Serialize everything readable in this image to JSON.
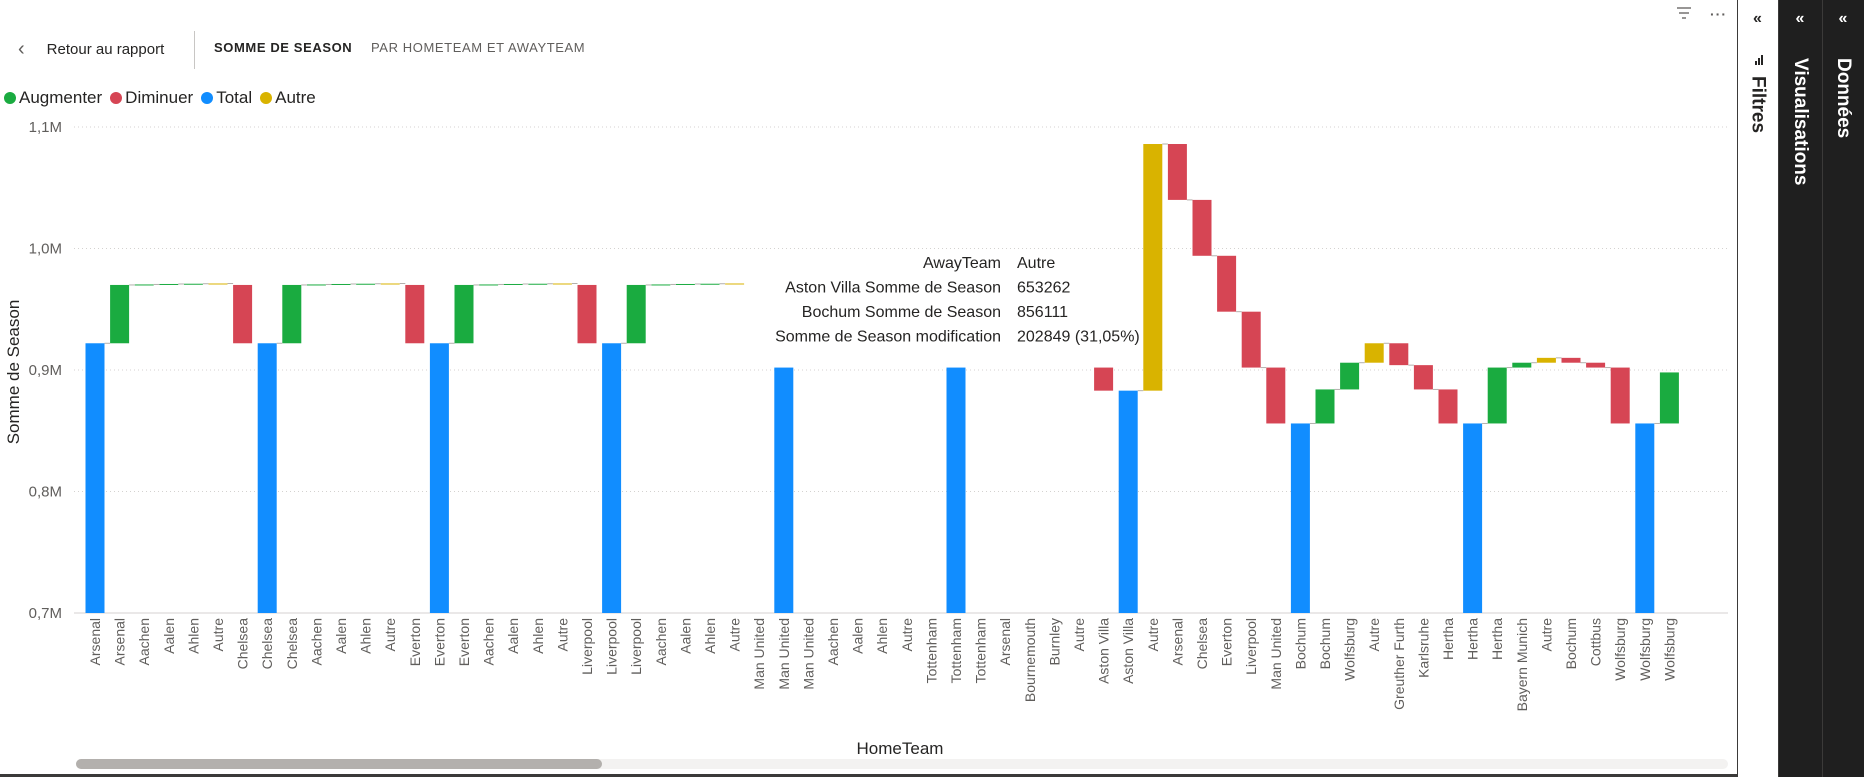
{
  "header": {
    "back_label": "Retour au rapport",
    "back_icon": "chevron-left-icon",
    "tabs": [
      {
        "label": "SOMME DE SEASON",
        "active": true
      },
      {
        "label": "PAR HOMETEAM ET AWAYTEAM",
        "active": false
      }
    ],
    "filter_icon": "filter-lines-icon",
    "more_icon": "ellipsis-icon"
  },
  "legend": [
    {
      "label": "Augmenter",
      "color": "#1AAB40"
    },
    {
      "label": "Diminuer",
      "color": "#D64554"
    },
    {
      "label": "Total",
      "color": "#118DFF"
    },
    {
      "label": "Autre",
      "color": "#D9B300"
    }
  ],
  "tooltip": [
    {
      "label": "AwayTeam",
      "value": "Autre"
    },
    {
      "label": "Aston Villa Somme de Season",
      "value": "653262"
    },
    {
      "label": "Bochum Somme de Season",
      "value": "856111"
    },
    {
      "label": "Somme de Season modification",
      "value": "202849 (31,05%)"
    }
  ],
  "chart_data": {
    "type": "waterfall",
    "xlabel": "HomeTeam",
    "ylabel": "Somme de Season",
    "ylim": [
      700000,
      1100000
    ],
    "yticks": [
      "0,7M",
      "0,8M",
      "0,9M",
      "1,0M",
      "1,1M"
    ],
    "grid": true,
    "legend_position": "top-left",
    "categories": [
      "Arsenal",
      "Arsenal",
      "Aachen",
      "Aalen",
      "Ahlen",
      "Autre",
      "Chelsea",
      "Chelsea",
      "Chelsea",
      "Aachen",
      "Aalen",
      "Ahlen",
      "Autre",
      "Everton",
      "Everton",
      "Everton",
      "Aachen",
      "Aalen",
      "Ahlen",
      "Autre",
      "Liverpool",
      "Liverpool",
      "Liverpool",
      "Aachen",
      "Aalen",
      "Ahlen",
      "Autre",
      "Man United",
      "Man United",
      "Man United",
      "Aachen",
      "Aalen",
      "Ahlen",
      "Autre",
      "Tottenham",
      "Tottenham",
      "Tottenham",
      "Arsenal",
      "Bournemouth",
      "Burnley",
      "Autre",
      "Aston Villa",
      "Aston Villa",
      "Autre",
      "Arsenal",
      "Chelsea",
      "Everton",
      "Liverpool",
      "Man United",
      "Bochum",
      "Bochum",
      "Wolfsburg",
      "Autre",
      "Greuther Furth",
      "Karlsruhe",
      "Hertha",
      "Hertha",
      "Hertha",
      "Bayern Munich",
      "Autre",
      "Bochum",
      "Cottbus",
      "Wolfsburg",
      "Wolfsburg",
      "Wolfsburg"
    ],
    "bars": [
      {
        "kind": "Total",
        "start": 700000,
        "end": 922000
      },
      {
        "kind": "Augmenter",
        "start": 922000,
        "end": 970000
      },
      {
        "kind": "Augmenter",
        "start": 970000,
        "end": 970400
      },
      {
        "kind": "Augmenter",
        "start": 970400,
        "end": 970800
      },
      {
        "kind": "Augmenter",
        "start": 970800,
        "end": 971000
      },
      {
        "kind": "Autre",
        "start": 971000,
        "end": 971200
      },
      {
        "kind": "Diminuer",
        "start": 970000,
        "end": 922000
      },
      {
        "kind": "Total",
        "start": 700000,
        "end": 922000
      },
      {
        "kind": "Augmenter",
        "start": 922000,
        "end": 970000
      },
      {
        "kind": "Augmenter",
        "start": 970000,
        "end": 970400
      },
      {
        "kind": "Augmenter",
        "start": 970400,
        "end": 970800
      },
      {
        "kind": "Augmenter",
        "start": 970800,
        "end": 971000
      },
      {
        "kind": "Autre",
        "start": 971000,
        "end": 971200
      },
      {
        "kind": "Diminuer",
        "start": 970000,
        "end": 922000
      },
      {
        "kind": "Total",
        "start": 700000,
        "end": 922000
      },
      {
        "kind": "Augmenter",
        "start": 922000,
        "end": 970000
      },
      {
        "kind": "Augmenter",
        "start": 970000,
        "end": 970400
      },
      {
        "kind": "Augmenter",
        "start": 970400,
        "end": 970800
      },
      {
        "kind": "Augmenter",
        "start": 970800,
        "end": 971000
      },
      {
        "kind": "Autre",
        "start": 971000,
        "end": 971200
      },
      {
        "kind": "Diminuer",
        "start": 970000,
        "end": 922000
      },
      {
        "kind": "Total",
        "start": 700000,
        "end": 922000
      },
      {
        "kind": "Augmenter",
        "start": 922000,
        "end": 970000
      },
      {
        "kind": "Augmenter",
        "start": 970000,
        "end": 970400
      },
      {
        "kind": "Augmenter",
        "start": 970400,
        "end": 970800
      },
      {
        "kind": "Augmenter",
        "start": 970800,
        "end": 971000
      },
      {
        "kind": "Autre",
        "start": 971000,
        "end": 971200
      },
      null,
      {
        "kind": "Total",
        "start": 700000,
        "end": 902000
      },
      null,
      null,
      null,
      null,
      null,
      null,
      {
        "kind": "Total",
        "start": 700000,
        "end": 902000
      },
      null,
      null,
      null,
      null,
      null,
      {
        "kind": "Diminuer",
        "start": 902000,
        "end": 883000
      },
      {
        "kind": "Total",
        "start": 700000,
        "end": 883000
      },
      {
        "kind": "Autre",
        "start": 883000,
        "end": 1086000
      },
      {
        "kind": "Diminuer",
        "start": 1086000,
        "end": 1040000
      },
      {
        "kind": "Diminuer",
        "start": 1040000,
        "end": 994000
      },
      {
        "kind": "Diminuer",
        "start": 994000,
        "end": 948000
      },
      {
        "kind": "Diminuer",
        "start": 948000,
        "end": 902000
      },
      {
        "kind": "Diminuer",
        "start": 902000,
        "end": 856000
      },
      {
        "kind": "Total",
        "start": 700000,
        "end": 856000
      },
      {
        "kind": "Augmenter",
        "start": 856000,
        "end": 884000
      },
      {
        "kind": "Augmenter",
        "start": 884000,
        "end": 906000
      },
      {
        "kind": "Autre",
        "start": 906000,
        "end": 922000
      },
      {
        "kind": "Diminuer",
        "start": 922000,
        "end": 904000
      },
      {
        "kind": "Diminuer",
        "start": 904000,
        "end": 884000
      },
      {
        "kind": "Diminuer",
        "start": 884000,
        "end": 856000
      },
      {
        "kind": "Total",
        "start": 700000,
        "end": 856000
      },
      {
        "kind": "Augmenter",
        "start": 856000,
        "end": 902000
      },
      {
        "kind": "Augmenter",
        "start": 902000,
        "end": 906000
      },
      {
        "kind": "Autre",
        "start": 906000,
        "end": 910000
      },
      {
        "kind": "Diminuer",
        "start": 910000,
        "end": 906000
      },
      {
        "kind": "Diminuer",
        "start": 906000,
        "end": 902000
      },
      {
        "kind": "Diminuer",
        "start": 902000,
        "end": 856000
      },
      {
        "kind": "Total",
        "start": 700000,
        "end": 856000
      },
      {
        "kind": "Augmenter",
        "start": 856000,
        "end": 898000
      }
    ]
  },
  "filters_pane": {
    "title": "Filtres",
    "collapse_icon": "double-chevron-left-icon",
    "filter_icon": "filter-bars-icon"
  },
  "visualizations_pane": {
    "title": "Visualisations",
    "collapse_icon": "double-chevron-left-icon"
  },
  "data_pane": {
    "title": "Données",
    "collapse_icon": "double-chevron-left-icon"
  }
}
